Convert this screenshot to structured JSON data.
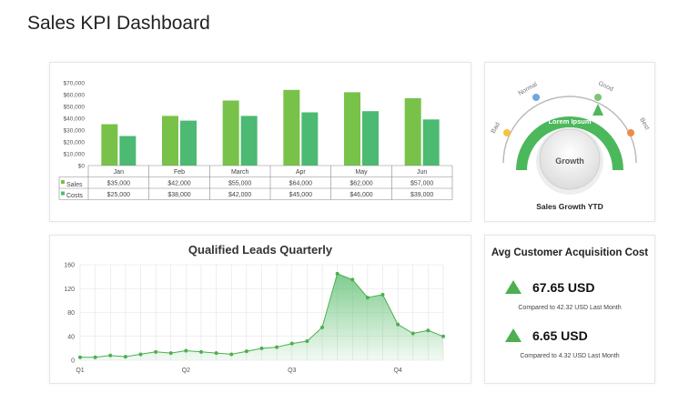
{
  "page": {
    "title": "Sales KPI Dashboard"
  },
  "sales_card": {
    "row_labels": [
      "Sales",
      "Costs"
    ],
    "sales_values_text": [
      "$35,000",
      "$42,000",
      "$55,000",
      "$64,000",
      "$62,000",
      "$57,000"
    ],
    "costs_values_text": [
      "$25,000",
      "$38,000",
      "$42,000",
      "$45,000",
      "$46,000",
      "$39,000"
    ]
  },
  "gauge": {
    "ring_label": "Lorem Ipsum",
    "center_label": "Growth",
    "caption": "Sales Growth YTD",
    "levels": [
      "Bad",
      "Normal",
      "Good",
      "Best"
    ],
    "level_colors": [
      "#f5c242",
      "#6fa8dc",
      "#7cc576",
      "#f08a4b"
    ],
    "value_level": "Good"
  },
  "cac": {
    "title": "Avg Customer Acquisition Cost",
    "value1": "67.65 USD",
    "sub1": "Compared to 42.32 USD Last  Month",
    "value2": "6.65 USD",
    "sub2": "Compared to 4.32 USD Last  Month"
  },
  "colors": {
    "sales": "#78c24a",
    "costs": "#4cba72",
    "accent": "#4caf50",
    "area": "#6fcf8a"
  },
  "chart_data": [
    {
      "type": "bar",
      "title": "",
      "categories": [
        "Jan",
        "Feb",
        "March",
        "Apr",
        "May",
        "Jun"
      ],
      "series": [
        {
          "name": "Sales",
          "values": [
            35000,
            42000,
            55000,
            64000,
            62000,
            57000
          ]
        },
        {
          "name": "Costs",
          "values": [
            25000,
            38000,
            42000,
            45000,
            46000,
            39000
          ]
        }
      ],
      "ylim": [
        0,
        70000
      ],
      "yticks": [
        "$0",
        "$10,000",
        "$20,000",
        "$30,000",
        "$40,000",
        "$50,000",
        "$60,000",
        "$70,000"
      ],
      "legend": "data table below chart"
    },
    {
      "type": "area",
      "title": "Qualified Leads Quarterly",
      "x_tick_labels": [
        "Q1",
        "Q2",
        "Q3",
        "Q4"
      ],
      "y_tick_labels": [
        "0",
        "40",
        "80",
        "120",
        "160"
      ],
      "ylim": [
        0,
        160
      ],
      "values": [
        5,
        5,
        8,
        6,
        10,
        14,
        12,
        16,
        14,
        12,
        10,
        15,
        20,
        22,
        28,
        32,
        55,
        145,
        135,
        105,
        110,
        60,
        45,
        50,
        40
      ],
      "grid": true
    }
  ]
}
